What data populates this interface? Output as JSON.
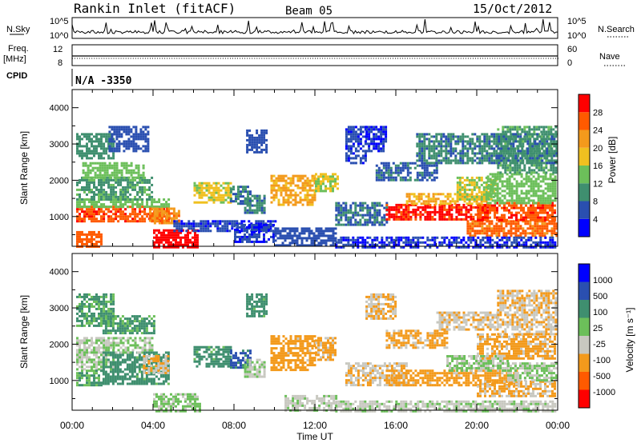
{
  "header": {
    "station": "Rankin Inlet (fitACF)",
    "beam": "Beam 05",
    "date": "15/Oct/2012"
  },
  "top_panels": {
    "nsky_label": "N.Sky",
    "nsearch_label": "N.Search",
    "noise_ticks": [
      "10^5",
      "10^0"
    ],
    "freq_label_1": "Freq.",
    "freq_label_2": "[MHz]",
    "freq_ticks": [
      "12",
      "8"
    ],
    "nave_label": "Nave",
    "nave_ticks": [
      "60",
      "0"
    ],
    "cpid_label": "CPID",
    "cpid_value": "N/A  -3350"
  },
  "axes": {
    "ylabel": "Slant Range [km]",
    "xlabel": "Time UT",
    "yticks": [
      "1000",
      "2000",
      "3000",
      "4000"
    ],
    "xticks": [
      "00:00",
      "04:00",
      "08:00",
      "12:00",
      "16:00",
      "20:00",
      "00:00"
    ]
  },
  "colors": {
    "power": [
      "#0000ff",
      "#2a4fb0",
      "#3f8f6f",
      "#6cbf5a",
      "#f0c020",
      "#f39a1c",
      "#ff5a00",
      "#ff0000"
    ],
    "velocity": [
      "#ff0000",
      "#ff5a00",
      "#f39a1c",
      "#c8c8c0",
      "#6cbf5a",
      "#3f8f6f",
      "#2a4fb0",
      "#0000ff"
    ]
  },
  "chart_data": [
    {
      "type": "heatmap",
      "name": "power",
      "ylabel": "Slant Range [km]",
      "xlabel": "Time UT",
      "x_range_hours": [
        0,
        24
      ],
      "y_range_km": [
        180,
        4500
      ],
      "colorbar_label": "Power [dB]",
      "colorbar_ticks": [
        "28",
        "24",
        "20",
        "16",
        "12",
        "8",
        "4"
      ],
      "colorbar_range": [
        0,
        32
      ],
      "regions": [
        {
          "t": [
            0.2,
            4.8
          ],
          "r": [
            850,
            1300
          ],
          "v": 27
        },
        {
          "t": [
            0.2,
            4.8
          ],
          "r": [
            1300,
            1500
          ],
          "v": 14
        },
        {
          "t": [
            0.2,
            4.0
          ],
          "r": [
            1500,
            2100
          ],
          "v": 11
        },
        {
          "t": [
            0.5,
            3.5
          ],
          "r": [
            2100,
            2500
          ],
          "v": 14
        },
        {
          "t": [
            0.2,
            2.0
          ],
          "r": [
            2600,
            3300
          ],
          "v": 10
        },
        {
          "t": [
            1.8,
            3.8
          ],
          "r": [
            2800,
            3500
          ],
          "v": 6
        },
        {
          "t": [
            0.2,
            1.5
          ],
          "r": [
            200,
            600
          ],
          "v": 26
        },
        {
          "t": [
            3.8,
            5.3
          ],
          "r": [
            850,
            1250
          ],
          "v": 23
        },
        {
          "t": [
            4.0,
            6.2
          ],
          "r": [
            180,
            650
          ],
          "v": 30
        },
        {
          "t": [
            5.0,
            10.0
          ],
          "r": [
            600,
            900
          ],
          "v": 5
        },
        {
          "t": [
            6.0,
            7.8
          ],
          "r": [
            1400,
            1950
          ],
          "v": 17
        },
        {
          "t": [
            7.8,
            8.8
          ],
          "r": [
            1350,
            1850
          ],
          "v": 8
        },
        {
          "t": [
            8.5,
            9.5
          ],
          "r": [
            1100,
            1600
          ],
          "v": 9
        },
        {
          "t": [
            8.0,
            10.0
          ],
          "r": [
            300,
            800
          ],
          "v": 5
        },
        {
          "t": [
            8.6,
            9.6
          ],
          "r": [
            2800,
            3400
          ],
          "v": 6
        },
        {
          "t": [
            9.8,
            12.0
          ],
          "r": [
            1350,
            2150
          ],
          "v": 21
        },
        {
          "t": [
            12.0,
            13.1
          ],
          "r": [
            1700,
            2200
          ],
          "v": 16
        },
        {
          "t": [
            10.0,
            13.0
          ],
          "r": [
            180,
            700
          ],
          "v": 6
        },
        {
          "t": [
            13.0,
            15.5
          ],
          "r": [
            800,
            1400
          ],
          "v": 8
        },
        {
          "t": [
            13.5,
            14.5
          ],
          "r": [
            2500,
            3500
          ],
          "v": 5
        },
        {
          "t": [
            14.5,
            15.5
          ],
          "r": [
            2800,
            3500
          ],
          "v": 4
        },
        {
          "t": [
            15.0,
            18.0
          ],
          "r": [
            2000,
            2500
          ],
          "v": 7
        },
        {
          "t": [
            15.5,
            20.5
          ],
          "r": [
            900,
            1350
          ],
          "v": 29
        },
        {
          "t": [
            16.5,
            20.5
          ],
          "r": [
            1350,
            1650
          ],
          "v": 20
        },
        {
          "t": [
            19.0,
            21.0
          ],
          "r": [
            1500,
            2100
          ],
          "v": 16
        },
        {
          "t": [
            19.5,
            23.9
          ],
          "r": [
            500,
            900
          ],
          "v": 25
        },
        {
          "t": [
            20.0,
            23.9
          ],
          "r": [
            900,
            1400
          ],
          "v": 27
        },
        {
          "t": [
            20.5,
            23.9
          ],
          "r": [
            1400,
            2200
          ],
          "v": 14
        },
        {
          "t": [
            21.0,
            23.9
          ],
          "r": [
            2200,
            3500
          ],
          "v": 11
        },
        {
          "t": [
            17.0,
            23.9
          ],
          "r": [
            2500,
            3300
          ],
          "v": 9
        },
        {
          "t": [
            13.0,
            23.9
          ],
          "r": [
            180,
            450
          ],
          "v": 4
        }
      ]
    },
    {
      "type": "heatmap",
      "name": "velocity",
      "ylabel": "Slant Range [km]",
      "xlabel": "Time UT",
      "x_range_hours": [
        0,
        24
      ],
      "y_range_km": [
        180,
        4500
      ],
      "colorbar_label": "Velocity [m s⁻¹]",
      "colorbar_ticks": [
        "1000",
        "500",
        "100",
        "25",
        "-25",
        "-100",
        "-500",
        "-1000"
      ],
      "colorbar_range": [
        -1250,
        1250
      ],
      "regions": [
        {
          "t": [
            0.2,
            2.0
          ],
          "r": [
            1300,
            2200
          ],
          "v": -10
        },
        {
          "t": [
            0.2,
            1.5
          ],
          "r": [
            850,
            1300
          ],
          "v": 300
        },
        {
          "t": [
            1.5,
            4.8
          ],
          "r": [
            900,
            1800
          ],
          "v": 450
        },
        {
          "t": [
            0.2,
            2.0
          ],
          "r": [
            2500,
            3400
          ],
          "v": 350
        },
        {
          "t": [
            1.5,
            4.0
          ],
          "r": [
            2300,
            2800
          ],
          "v": 400
        },
        {
          "t": [
            2.0,
            4.0
          ],
          "r": [
            1800,
            2200
          ],
          "v": 10
        },
        {
          "t": [
            3.5,
            4.7
          ],
          "r": [
            1200,
            1700
          ],
          "v": -300
        },
        {
          "t": [
            4.0,
            6.3
          ],
          "r": [
            180,
            650
          ],
          "v": 80
        },
        {
          "t": [
            6.0,
            7.8
          ],
          "r": [
            1400,
            1950
          ],
          "v": 450
        },
        {
          "t": [
            7.8,
            8.8
          ],
          "r": [
            1350,
            1850
          ],
          "v": 700
        },
        {
          "t": [
            8.6,
            9.6
          ],
          "r": [
            2800,
            3400
          ],
          "v": 450
        },
        {
          "t": [
            8.5,
            9.5
          ],
          "r": [
            1100,
            1600
          ],
          "v": -10
        },
        {
          "t": [
            9.8,
            12.0
          ],
          "r": [
            1300,
            2250
          ],
          "v": -450
        },
        {
          "t": [
            12.0,
            13.0
          ],
          "r": [
            1600,
            2200
          ],
          "v": -400
        },
        {
          "t": [
            10.5,
            13.0
          ],
          "r": [
            180,
            600
          ],
          "v": -80
        },
        {
          "t": [
            13.5,
            16.5
          ],
          "r": [
            900,
            1500
          ],
          "v": -250
        },
        {
          "t": [
            15.5,
            18.5
          ],
          "r": [
            1900,
            2400
          ],
          "v": -400
        },
        {
          "t": [
            14.5,
            16.0
          ],
          "r": [
            2700,
            3400
          ],
          "v": -300
        },
        {
          "t": [
            18.0,
            21.0
          ],
          "r": [
            2400,
            2900
          ],
          "v": -250
        },
        {
          "t": [
            15.5,
            22.0
          ],
          "r": [
            900,
            1300
          ],
          "v": -450
        },
        {
          "t": [
            18.5,
            21.5
          ],
          "r": [
            1300,
            1700
          ],
          "v": 5
        },
        {
          "t": [
            20.0,
            23.9
          ],
          "r": [
            1600,
            2300
          ],
          "v": -400
        },
        {
          "t": [
            20.0,
            23.9
          ],
          "r": [
            600,
            1000
          ],
          "v": -350
        },
        {
          "t": [
            21.5,
            23.9
          ],
          "r": [
            1000,
            1500
          ],
          "v": 10
        },
        {
          "t": [
            21.0,
            23.9
          ],
          "r": [
            2300,
            3500
          ],
          "v": -300
        },
        {
          "t": [
            13.0,
            23.9
          ],
          "r": [
            180,
            450
          ],
          "v": -60
        }
      ]
    }
  ]
}
